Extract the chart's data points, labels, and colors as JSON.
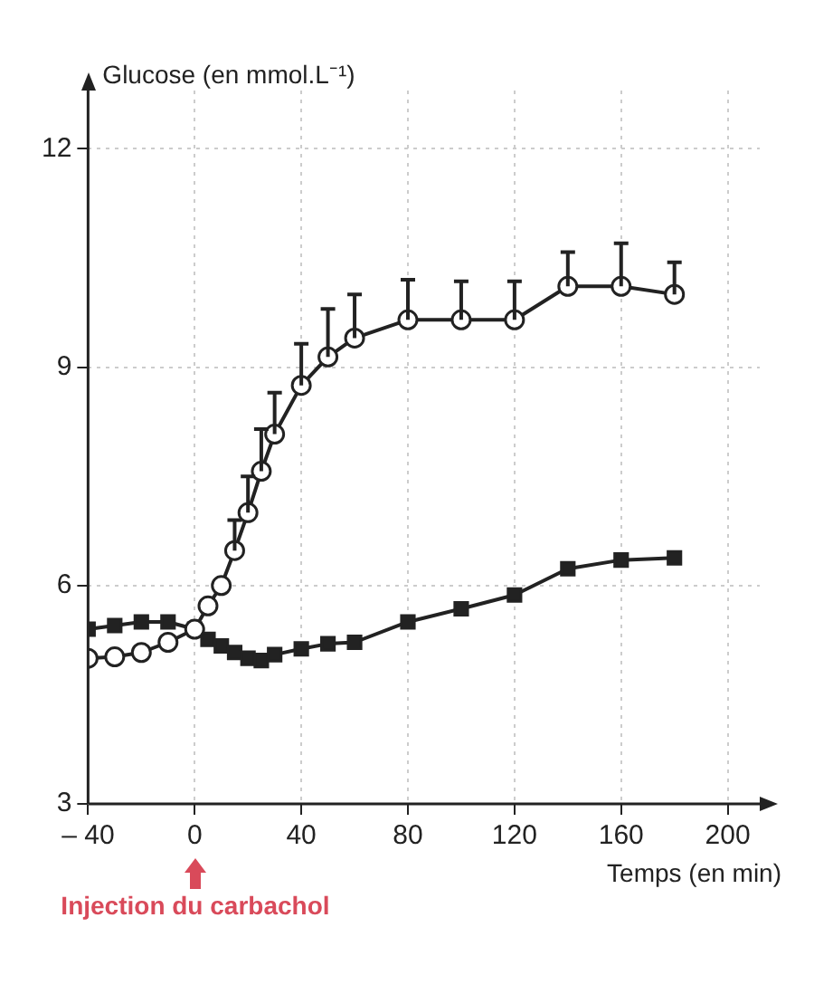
{
  "chart_data": {
    "type": "line",
    "ylabel": "Glucose (en mmol.L⁻¹)",
    "xlabel": "Temps (en min)",
    "annotations": [
      "Injection du carbachol"
    ],
    "xlim": [
      -40,
      212
    ],
    "ylim": [
      3,
      12.8
    ],
    "xticks": [
      {
        "value": -40,
        "label": "– 40"
      },
      0,
      40,
      80,
      120,
      160,
      200
    ],
    "yticks": [
      3,
      6,
      9,
      12
    ],
    "grid": true,
    "legend": false,
    "line_style": "solid",
    "series": [
      {
        "color": "#222222",
        "marker": "circle",
        "x": [
          -40,
          -30,
          -20,
          -10,
          0,
          5,
          10,
          15,
          20,
          25,
          30,
          40,
          50,
          60,
          80,
          100,
          120,
          140,
          160,
          180
        ],
        "values": [
          5.0,
          5.02,
          5.08,
          5.22,
          5.4,
          5.72,
          6.0,
          6.48,
          7.0,
          7.57,
          8.08,
          8.75,
          9.14,
          9.4,
          9.65,
          9.65,
          9.65,
          10.11,
          10.11,
          10.0
        ],
        "errors": [
          null,
          null,
          null,
          null,
          null,
          null,
          null,
          [
            6.48,
            6.9
          ],
          [
            7.0,
            7.5
          ],
          [
            7.57,
            8.15
          ],
          [
            8.08,
            8.65
          ],
          [
            8.75,
            9.32
          ],
          [
            9.14,
            9.8
          ],
          [
            9.4,
            10.0
          ],
          [
            9.65,
            10.2
          ],
          [
            9.65,
            10.18
          ],
          [
            9.65,
            10.18
          ],
          [
            10.11,
            10.58
          ],
          [
            10.11,
            10.7
          ],
          [
            10.0,
            10.44
          ]
        ]
      },
      {
        "color": "#222222",
        "marker": "square",
        "x": [
          -40,
          -30,
          -20,
          -10,
          0,
          5,
          10,
          15,
          20,
          25,
          30,
          40,
          50,
          60,
          80,
          100,
          120,
          140,
          160,
          180
        ],
        "values": [
          5.4,
          5.45,
          5.5,
          5.5,
          5.4,
          5.26,
          5.17,
          5.08,
          5.0,
          4.97,
          5.05,
          5.13,
          5.2,
          5.22,
          5.5,
          5.68,
          5.87,
          6.23,
          6.35,
          6.38
        ]
      }
    ]
  }
}
